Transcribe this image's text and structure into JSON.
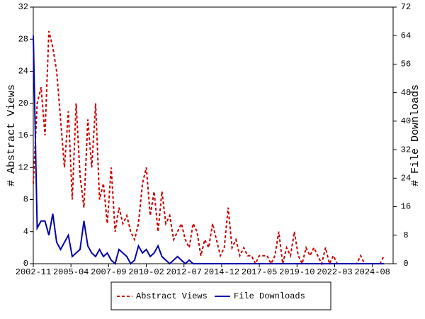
{
  "chart_data": {
    "type": "line",
    "y_label": "# Abstract Views",
    "y2_label": "# File Downloads",
    "x": [
      "2002-11",
      "2003-02",
      "2003-05",
      "2003-08",
      "2003-11",
      "2004-02",
      "2004-05",
      "2004-08",
      "2004-11",
      "2005-02",
      "2005-05",
      "2005-08",
      "2005-11",
      "2006-02",
      "2006-05",
      "2006-08",
      "2006-11",
      "2007-02",
      "2007-05",
      "2007-08",
      "2007-11",
      "2008-02",
      "2008-05",
      "2008-08",
      "2008-11",
      "2009-02",
      "2009-05",
      "2009-08",
      "2009-11",
      "2010-02",
      "2010-05",
      "2010-08",
      "2010-11",
      "2011-02",
      "2011-05",
      "2011-08",
      "2011-11",
      "2012-02",
      "2012-05",
      "2012-08",
      "2012-11",
      "2013-02",
      "2013-05",
      "2013-08",
      "2013-11",
      "2014-02",
      "2014-05",
      "2014-08",
      "2014-11",
      "2015-02",
      "2015-05",
      "2015-08",
      "2015-11",
      "2016-02",
      "2016-05",
      "2016-08",
      "2016-11",
      "2017-02",
      "2017-05",
      "2017-08",
      "2017-11",
      "2018-02",
      "2018-05",
      "2018-08",
      "2018-11",
      "2019-02",
      "2019-05",
      "2019-08",
      "2019-11",
      "2020-02",
      "2020-05",
      "2020-08",
      "2020-11",
      "2021-02",
      "2021-05",
      "2021-08",
      "2021-11",
      "2022-02",
      "2022-05",
      "2022-08",
      "2022-11",
      "2023-02",
      "2023-05",
      "2023-08",
      "2023-11",
      "2024-02",
      "2024-05",
      "2024-08",
      "2024-11",
      "2025-02",
      "2025-05"
    ],
    "series": [
      {
        "name": "Abstract Views",
        "color": "#cc0000",
        "dash": "4,3",
        "axis": "y",
        "values": [
          10,
          20,
          22,
          16,
          29,
          27,
          24,
          18,
          12,
          19,
          8,
          20,
          11,
          7,
          18,
          12,
          20,
          8,
          10,
          5,
          12,
          4,
          7,
          5,
          6,
          4,
          3,
          5,
          10,
          12,
          6,
          9,
          4,
          9,
          5,
          6,
          3,
          4,
          5,
          3,
          2,
          5,
          4,
          1,
          3,
          2,
          5,
          3,
          1,
          2,
          7,
          2,
          3,
          1,
          2,
          1,
          1,
          0,
          1,
          1,
          1,
          0,
          1,
          4,
          0,
          2,
          1,
          4,
          1,
          0,
          2,
          1,
          2,
          1,
          0,
          2,
          0,
          1,
          0,
          0,
          0,
          0,
          0,
          0,
          1,
          0,
          0,
          0,
          0,
          0,
          1
        ]
      },
      {
        "name": "File Downloads",
        "color": "#0000aa",
        "dash": "",
        "axis": "y2",
        "values": [
          64,
          10,
          12,
          12,
          8,
          14,
          6,
          4,
          6,
          8,
          2,
          3,
          4,
          12,
          5,
          3,
          2,
          4,
          2,
          3,
          1,
          0,
          4,
          3,
          2,
          0,
          1,
          5,
          3,
          4,
          2,
          3,
          5,
          2,
          1,
          0,
          1,
          2,
          1,
          0,
          1,
          0,
          0,
          0,
          0,
          0,
          0,
          0,
          0,
          0,
          0,
          0,
          0,
          0,
          0,
          0,
          0,
          0,
          0,
          0,
          0,
          0,
          0,
          0,
          0,
          0,
          0,
          0,
          0,
          0,
          0,
          0,
          0,
          0,
          0,
          0,
          0,
          0,
          0,
          0,
          0,
          0,
          0,
          0,
          0,
          0,
          0,
          0,
          0,
          0,
          0
        ]
      }
    ],
    "xlim": [
      "2002-11",
      "2025-12"
    ],
    "xticks": [
      "2002-11",
      "2005-04",
      "2007-09",
      "2010-02",
      "2012-07",
      "2014-12",
      "2017-05",
      "2019-10",
      "2022-03",
      "2024-08"
    ],
    "ylim": [
      0,
      32
    ],
    "yticks": [
      0,
      4,
      8,
      12,
      16,
      20,
      24,
      28,
      32
    ],
    "y2lim": [
      0,
      72
    ],
    "y2ticks": [
      0,
      8,
      16,
      24,
      32,
      40,
      48,
      56,
      64,
      72
    ]
  }
}
